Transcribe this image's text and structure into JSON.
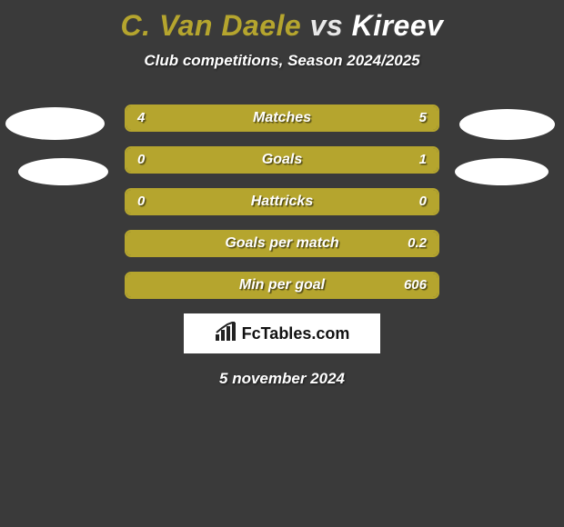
{
  "background_color": "#3a3a3a",
  "title": {
    "player1": "C. Van Daele",
    "vs": "vs",
    "player2": "Kireev",
    "player1_color": "#b5a52e",
    "vs_color": "#e8e8e8",
    "player2_color": "#ffffff"
  },
  "subtitle": "Club competitions, Season 2024/2025",
  "avatars": {
    "background": "#ffffff"
  },
  "bar_colors": {
    "border": "#b5a52e",
    "fill": "#b5a52e"
  },
  "stats": [
    {
      "label": "Matches",
      "left_val": "4",
      "right_val": "5",
      "left_pct": 44,
      "right_pct": 56
    },
    {
      "label": "Goals",
      "left_val": "0",
      "right_val": "1",
      "left_pct": 18,
      "right_pct": 82
    },
    {
      "label": "Hattricks",
      "left_val": "0",
      "right_val": "0",
      "left_pct": 50,
      "right_pct": 50
    },
    {
      "label": "Goals per match",
      "left_val": "",
      "right_val": "0.2",
      "left_pct": 37,
      "right_pct": 63
    },
    {
      "label": "Min per goal",
      "left_val": "",
      "right_val": "606",
      "left_pct": 37,
      "right_pct": 63
    }
  ],
  "branding": {
    "text": "FcTables.com",
    "logo_color": "#222222",
    "background": "#ffffff"
  },
  "date": "5 november 2024",
  "typography": {
    "title_fontsize": 32,
    "subtitle_fontsize": 17,
    "stat_label_fontsize": 16,
    "stat_value_fontsize": 15,
    "date_fontsize": 17
  }
}
